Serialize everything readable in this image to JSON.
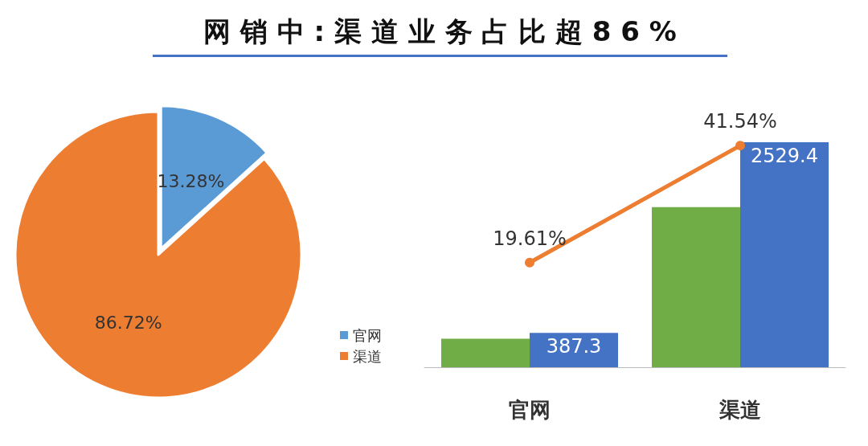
{
  "chart_data": [
    {
      "type": "pie",
      "title": "网 销 中 : 渠 道 业 务 占 比 超 8 6 %",
      "categories": [
        "官网",
        "渠道"
      ],
      "values": [
        13.28,
        86.72
      ],
      "colors": [
        "#5b9bd5",
        "#ed7d31"
      ],
      "value_labels": [
        "13.28%",
        "86.72%"
      ],
      "legend": "right"
    },
    {
      "type": "bar",
      "categories": [
        "官网",
        "渠道"
      ],
      "series": [
        {
          "color": "#70ad47",
          "values": [
            320,
            1800
          ]
        },
        {
          "color": "#4472c4",
          "values": [
            387.3,
            2529.4
          ],
          "value_labels": [
            "387.3",
            "2529.4"
          ]
        },
        {
          "type": "line",
          "axis": "y2",
          "color": "#ed7d31",
          "values": [
            19.61,
            41.54
          ],
          "value_labels": [
            "19.61%",
            "41.54%"
          ]
        }
      ],
      "marker": "circle",
      "legend": false
    }
  ]
}
